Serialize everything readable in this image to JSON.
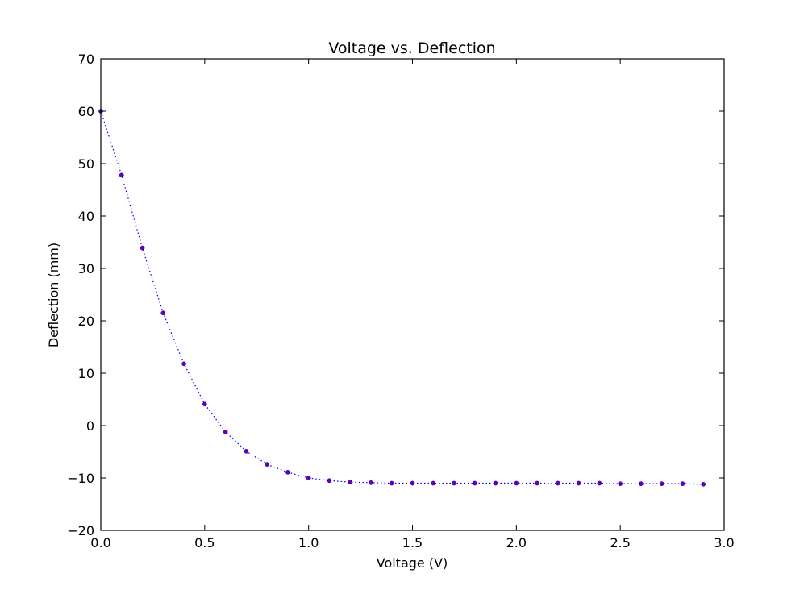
{
  "chart_data": {
    "type": "scatter",
    "title": "Voltage vs. Deflection",
    "xlabel": "Voltage (V)",
    "ylabel": "Deflection (mm)",
    "xlim": [
      0.0,
      3.0
    ],
    "ylim": [
      -20,
      70
    ],
    "xticks": [
      "0.0",
      "0.5",
      "1.0",
      "1.5",
      "2.0",
      "2.5",
      "3.0"
    ],
    "yticks": [
      "−20",
      "−10",
      "0",
      "10",
      "20",
      "30",
      "40",
      "50",
      "60",
      "70"
    ],
    "grid": false,
    "series": [
      {
        "line_color": "#0000ff",
        "marker_color": "#6a00a8",
        "x": [
          0.0,
          0.1,
          0.2,
          0.3,
          0.4,
          0.5,
          0.6,
          0.7,
          0.8,
          0.9,
          1.0,
          1.1,
          1.2,
          1.3,
          1.4,
          1.5,
          1.6,
          1.7,
          1.8,
          1.9,
          2.0,
          2.1,
          2.2,
          2.3,
          2.4,
          2.5,
          2.6,
          2.7,
          2.8,
          2.9
        ],
        "y": [
          60.0,
          47.8,
          33.9,
          21.5,
          11.8,
          4.1,
          -1.2,
          -4.9,
          -7.4,
          -8.9,
          -10.0,
          -10.5,
          -10.8,
          -10.9,
          -11.0,
          -11.0,
          -11.0,
          -11.0,
          -11.0,
          -11.0,
          -11.0,
          -11.0,
          -11.0,
          -11.0,
          -11.0,
          -11.1,
          -11.1,
          -11.1,
          -11.1,
          -11.2
        ]
      }
    ]
  }
}
